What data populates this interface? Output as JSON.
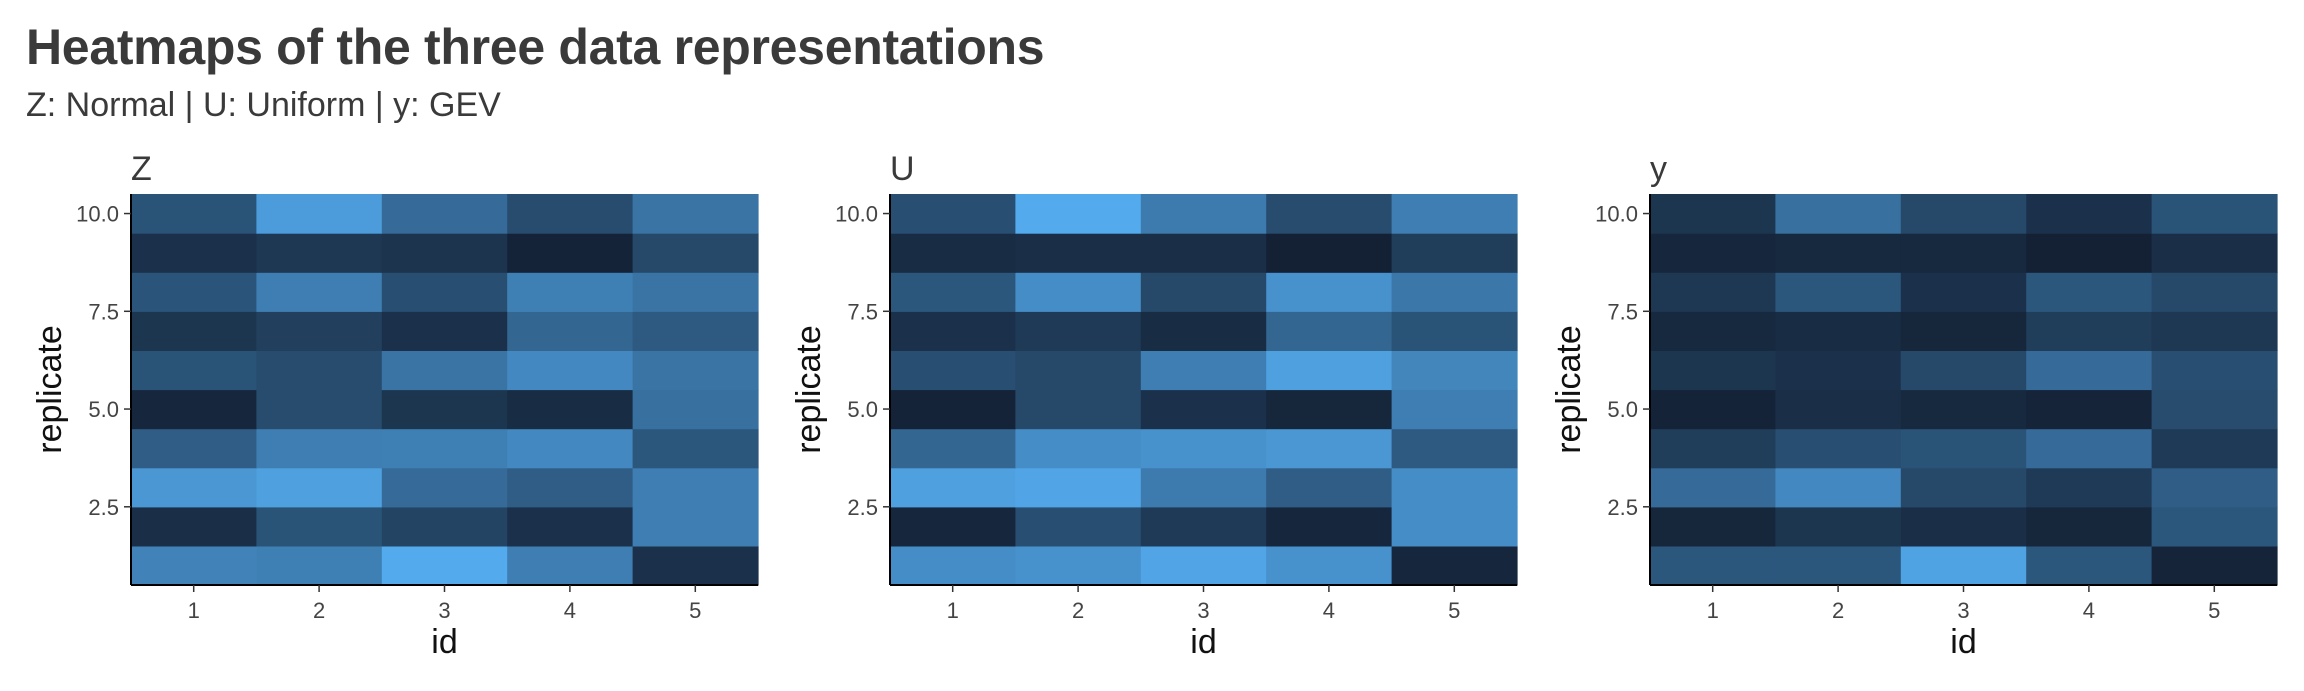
{
  "title": "Heatmaps of the three data representations",
  "subtitle": "Z: Normal | U: Uniform | y: GEV",
  "colors": {
    "low": "#132033",
    "high": "#56B1F7",
    "axis": "#000000",
    "text": "#3a3a3a"
  },
  "chart_data": [
    {
      "type": "heatmap",
      "title": "Z",
      "xlabel": "id",
      "ylabel": "replicate",
      "x": [
        1,
        2,
        3,
        4,
        5
      ],
      "y": [
        1,
        2,
        3,
        4,
        5,
        6,
        7,
        8,
        9,
        10
      ],
      "xticks": [
        "1",
        "2",
        "3",
        "4",
        "5"
      ],
      "yticks": [
        {
          "value": 2.5,
          "label": "2.5"
        },
        {
          "value": 5.0,
          "label": "5.0"
        },
        {
          "value": 7.5,
          "label": "7.5"
        },
        {
          "value": 10.0,
          "label": "10.0"
        }
      ],
      "grid": false,
      "legend": "none",
      "values": [
        [
          0.68,
          0.66,
          0.95,
          0.65,
          0.12
        ],
        [
          0.1,
          0.35,
          0.25,
          0.12,
          0.65
        ],
        [
          0.82,
          0.88,
          0.52,
          0.42,
          0.65
        ],
        [
          0.42,
          0.65,
          0.66,
          0.72,
          0.38
        ],
        [
          0.05,
          0.3,
          0.15,
          0.08,
          0.55
        ],
        [
          0.35,
          0.3,
          0.58,
          0.72,
          0.58
        ],
        [
          0.15,
          0.22,
          0.12,
          0.48,
          0.4
        ],
        [
          0.36,
          0.65,
          0.32,
          0.66,
          0.58
        ],
        [
          0.12,
          0.16,
          0.14,
          0.02,
          0.28
        ],
        [
          0.35,
          0.85,
          0.52,
          0.3,
          0.58
        ]
      ]
    },
    {
      "type": "heatmap",
      "title": "U",
      "xlabel": "id",
      "ylabel": "replicate",
      "x": [
        1,
        2,
        3,
        4,
        5
      ],
      "y": [
        1,
        2,
        3,
        4,
        5,
        6,
        7,
        8,
        9,
        10
      ],
      "xticks": [
        "1",
        "2",
        "3",
        "4",
        "5"
      ],
      "yticks": [
        {
          "value": 2.5,
          "label": "2.5"
        },
        {
          "value": 5.0,
          "label": "5.0"
        },
        {
          "value": 7.5,
          "label": "7.5"
        },
        {
          "value": 10.0,
          "label": "10.0"
        }
      ],
      "grid": false,
      "legend": "none",
      "values": [
        [
          0.75,
          0.78,
          0.92,
          0.78,
          0.05
        ],
        [
          0.05,
          0.32,
          0.18,
          0.05,
          0.75
        ],
        [
          0.88,
          0.92,
          0.62,
          0.42,
          0.75
        ],
        [
          0.48,
          0.75,
          0.78,
          0.82,
          0.4
        ],
        [
          0.02,
          0.28,
          0.12,
          0.04,
          0.65
        ],
        [
          0.32,
          0.28,
          0.65,
          0.88,
          0.7
        ],
        [
          0.12,
          0.18,
          0.08,
          0.48,
          0.35
        ],
        [
          0.38,
          0.75,
          0.28,
          0.78,
          0.6
        ],
        [
          0.08,
          0.1,
          0.1,
          0.01,
          0.2
        ],
        [
          0.32,
          0.95,
          0.62,
          0.3,
          0.65
        ]
      ]
    },
    {
      "type": "heatmap",
      "title": "y",
      "xlabel": "id",
      "ylabel": "replicate",
      "x": [
        1,
        2,
        3,
        4,
        5
      ],
      "y": [
        1,
        2,
        3,
        4,
        5,
        6,
        7,
        8,
        9,
        10
      ],
      "xticks": [
        "1",
        "2",
        "3",
        "4",
        "5"
      ],
      "yticks": [
        {
          "value": 2.5,
          "label": "2.5"
        },
        {
          "value": 5.0,
          "label": "5.0"
        },
        {
          "value": 7.5,
          "label": "7.5"
        },
        {
          "value": 10.0,
          "label": "10.0"
        }
      ],
      "grid": false,
      "legend": "none",
      "values": [
        [
          0.38,
          0.38,
          0.9,
          0.38,
          0.03
        ],
        [
          0.04,
          0.15,
          0.1,
          0.04,
          0.38
        ],
        [
          0.52,
          0.72,
          0.28,
          0.18,
          0.42
        ],
        [
          0.2,
          0.32,
          0.35,
          0.52,
          0.18
        ],
        [
          0.02,
          0.1,
          0.06,
          0.03,
          0.3
        ],
        [
          0.15,
          0.12,
          0.28,
          0.52,
          0.32
        ],
        [
          0.06,
          0.08,
          0.04,
          0.2,
          0.16
        ],
        [
          0.16,
          0.38,
          0.12,
          0.38,
          0.28
        ],
        [
          0.05,
          0.06,
          0.06,
          0.01,
          0.1
        ],
        [
          0.15,
          0.55,
          0.28,
          0.12,
          0.35
        ]
      ]
    }
  ]
}
